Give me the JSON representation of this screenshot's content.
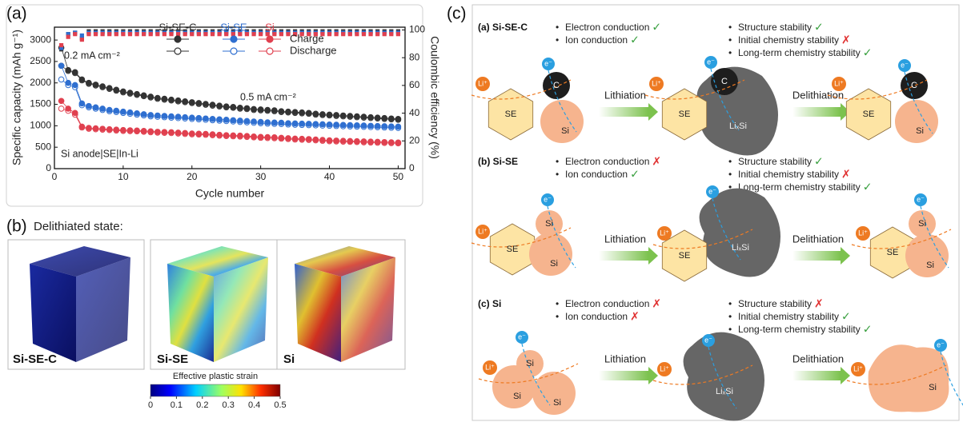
{
  "chart_data": {
    "type": "line",
    "label": "(a)",
    "xlabel": "Cycle number",
    "ylabel": "Specific capacity (mAh g⁻¹)",
    "y2label": "Coulombic efficiency (%)",
    "xlim": [
      0,
      51
    ],
    "xticks": [
      0,
      10,
      20,
      30,
      40,
      50
    ],
    "ylim": [
      0,
      3300
    ],
    "yticks": [
      0,
      500,
      1000,
      1500,
      2000,
      2500,
      3000
    ],
    "y2lim": [
      0,
      102
    ],
    "y2ticks": [
      0,
      20,
      40,
      60,
      80,
      100
    ],
    "grid": false,
    "annotations": [
      "0.2 mA cm⁻²",
      "0.5 mA cm⁻²",
      "Si anode|SE|In-Li"
    ],
    "legend_modes": [
      "Charge",
      "Discharge"
    ],
    "x": [
      1,
      2,
      3,
      4,
      5,
      6,
      7,
      8,
      9,
      10,
      11,
      12,
      13,
      14,
      15,
      16,
      17,
      18,
      19,
      20,
      21,
      22,
      23,
      24,
      25,
      26,
      27,
      28,
      29,
      30,
      31,
      32,
      33,
      34,
      35,
      36,
      37,
      38,
      39,
      40,
      41,
      42,
      43,
      44,
      45,
      46,
      47,
      48,
      49,
      50
    ],
    "series": [
      {
        "name": "Si-SE-C",
        "color": "#333333",
        "charge": [
          2820,
          2300,
          2250,
          2080,
          2000,
          1960,
          1920,
          1880,
          1840,
          1800,
          1770,
          1740,
          1710,
          1680,
          1650,
          1630,
          1610,
          1590,
          1570,
          1550,
          1530,
          1510,
          1490,
          1470,
          1450,
          1440,
          1420,
          1410,
          1390,
          1380,
          1370,
          1360,
          1340,
          1330,
          1320,
          1310,
          1300,
          1280,
          1270,
          1260,
          1250,
          1240,
          1230,
          1220,
          1210,
          1200,
          1190,
          1180,
          1170,
          1160
        ],
        "discharge": [
          2400,
          2280,
          2230,
          2060,
          1980,
          1940,
          1900,
          1860,
          1820,
          1780,
          1750,
          1720,
          1690,
          1660,
          1630,
          1610,
          1590,
          1570,
          1550,
          1530,
          1510,
          1490,
          1470,
          1450,
          1430,
          1420,
          1400,
          1390,
          1370,
          1360,
          1350,
          1340,
          1320,
          1310,
          1300,
          1290,
          1280,
          1260,
          1250,
          1240,
          1230,
          1220,
          1210,
          1200,
          1190,
          1180,
          1170,
          1160,
          1150,
          1140
        ],
        "ce": [
          86,
          97,
          98,
          94,
          99,
          99,
          99,
          99,
          99,
          99,
          99,
          99,
          99,
          99,
          99,
          99,
          99,
          99,
          99,
          99,
          99,
          99,
          99,
          99,
          99,
          99,
          99,
          99,
          99,
          99,
          99,
          99,
          99,
          99,
          99,
          99,
          99,
          99,
          99,
          99,
          99,
          99,
          99,
          99,
          99,
          99,
          99,
          99,
          99,
          99
        ]
      },
      {
        "name": "Si-SE",
        "color": "#2f6fd0",
        "charge": [
          2400,
          2000,
          1950,
          1520,
          1460,
          1430,
          1400,
          1370,
          1350,
          1330,
          1310,
          1290,
          1270,
          1250,
          1240,
          1230,
          1220,
          1210,
          1200,
          1190,
          1180,
          1170,
          1160,
          1150,
          1140,
          1130,
          1120,
          1110,
          1100,
          1090,
          1080,
          1075,
          1070,
          1060,
          1055,
          1050,
          1045,
          1040,
          1035,
          1030,
          1025,
          1020,
          1015,
          1010,
          1005,
          1000,
          995,
          990,
          985,
          980
        ],
        "discharge": [
          2080,
          1950,
          1900,
          1480,
          1430,
          1400,
          1370,
          1340,
          1320,
          1300,
          1280,
          1260,
          1240,
          1220,
          1210,
          1200,
          1190,
          1180,
          1170,
          1160,
          1150,
          1140,
          1130,
          1120,
          1110,
          1100,
          1090,
          1080,
          1070,
          1060,
          1050,
          1045,
          1040,
          1030,
          1025,
          1020,
          1015,
          1010,
          1005,
          1000,
          995,
          990,
          985,
          980,
          975,
          970,
          965,
          960,
          955,
          950
        ],
        "ce": [
          87,
          97,
          98,
          96,
          98,
          98,
          98,
          98,
          98,
          98,
          98,
          98,
          98,
          98,
          98,
          98,
          98,
          98,
          98,
          98,
          98,
          98,
          98,
          98,
          98,
          98,
          98,
          98,
          98,
          98,
          98,
          98,
          98,
          98,
          98,
          98,
          98,
          98,
          98,
          98,
          98,
          98,
          98,
          98,
          98,
          98,
          98,
          98,
          98,
          98
        ]
      },
      {
        "name": "Si",
        "color": "#e0404f",
        "charge": [
          1580,
          1400,
          1300,
          980,
          950,
          940,
          930,
          920,
          910,
          900,
          895,
          890,
          880,
          870,
          860,
          855,
          850,
          840,
          830,
          820,
          815,
          810,
          800,
          790,
          780,
          775,
          770,
          760,
          750,
          740,
          735,
          730,
          720,
          710,
          700,
          695,
          690,
          680,
          670,
          660,
          655,
          650,
          645,
          640,
          635,
          630,
          625,
          620,
          615,
          610
        ],
        "discharge": [
          1400,
          1350,
          1260,
          960,
          930,
          920,
          910,
          900,
          890,
          880,
          875,
          870,
          860,
          850,
          840,
          835,
          830,
          820,
          810,
          800,
          795,
          790,
          780,
          770,
          760,
          755,
          750,
          740,
          730,
          720,
          715,
          710,
          700,
          690,
          680,
          675,
          670,
          660,
          650,
          640,
          635,
          630,
          625,
          620,
          615,
          610,
          605,
          600,
          595,
          590
        ],
        "ce": [
          89,
          95,
          97,
          93,
          97,
          97,
          97,
          97,
          97,
          97,
          97,
          97,
          97,
          97,
          97,
          97,
          97,
          97,
          97,
          97,
          97,
          97,
          97,
          97,
          97,
          97,
          97,
          97,
          97,
          97,
          97,
          97,
          97,
          97,
          97,
          97,
          97,
          97,
          97,
          97,
          97,
          97,
          97,
          97,
          97,
          97,
          97,
          97,
          97,
          97
        ]
      }
    ]
  },
  "panel_b": {
    "label": "(b)",
    "caption": "Delithiated state:",
    "images": [
      "Si-SE-C",
      "Si-SE",
      "Si"
    ],
    "colorbar": {
      "title": "Effective plastic strain",
      "range": [
        0,
        0.5
      ],
      "ticks": [
        0,
        0.1,
        0.2,
        0.3,
        0.4,
        0.5
      ]
    }
  },
  "panel_c": {
    "label": "(c)",
    "rows": [
      {
        "title": "(a) Si-SE-C",
        "left": [
          {
            "text": "Electron conduction",
            "ok": true
          },
          {
            "text": "Ion conduction",
            "ok": true
          }
        ],
        "right": [
          {
            "text": "Structure stability",
            "ok": true
          },
          {
            "text": "Initial chemistry stability",
            "ok": false
          },
          {
            "text": "Long-term chemistry stability",
            "ok": true
          }
        ],
        "steps": [
          "Lithiation",
          "Delithiation"
        ],
        "stages": [
          [
            "Li⁺",
            "e⁻",
            "C",
            "SE",
            "Si"
          ],
          [
            "Li⁺",
            "e⁻",
            "C",
            "SE",
            "LiₓSi"
          ],
          [
            "Li⁺",
            "e⁻",
            "C",
            "SE",
            "Si"
          ]
        ]
      },
      {
        "title": "(b) Si-SE",
        "left": [
          {
            "text": "Electron conduction",
            "ok": false
          },
          {
            "text": "Ion conduction",
            "ok": true
          }
        ],
        "right": [
          {
            "text": "Structure stability",
            "ok": true
          },
          {
            "text": "Initial chemistry stability",
            "ok": false
          },
          {
            "text": "Long-term chemistry stability",
            "ok": true
          }
        ],
        "steps": [
          "Lithiation",
          "Delithiation"
        ],
        "stages": [
          [
            "Li⁺",
            "e⁻",
            "Si",
            "SE",
            "Si"
          ],
          [
            "Li⁺",
            "e⁻",
            "SE",
            "LiₓSi"
          ],
          [
            "Li⁺",
            "e⁻",
            "Si",
            "SE",
            "Si"
          ]
        ]
      },
      {
        "title": "(c) Si",
        "left": [
          {
            "text": "Electron conduction",
            "ok": false
          },
          {
            "text": "Ion conduction",
            "ok": false
          }
        ],
        "right": [
          {
            "text": "Structure stability",
            "ok": false
          },
          {
            "text": "Initial chemistry stability",
            "ok": true
          },
          {
            "text": "Long-term chemistry stability",
            "ok": true
          }
        ],
        "steps": [
          "Lithiation",
          "Delithiation"
        ],
        "stages": [
          [
            "Li⁺",
            "e⁻",
            "Si",
            "Si",
            "Si"
          ],
          [
            "Li⁺",
            "e⁻",
            "LiₓSi"
          ],
          [
            "Li⁺",
            "e⁻",
            "Si"
          ]
        ]
      }
    ]
  }
}
